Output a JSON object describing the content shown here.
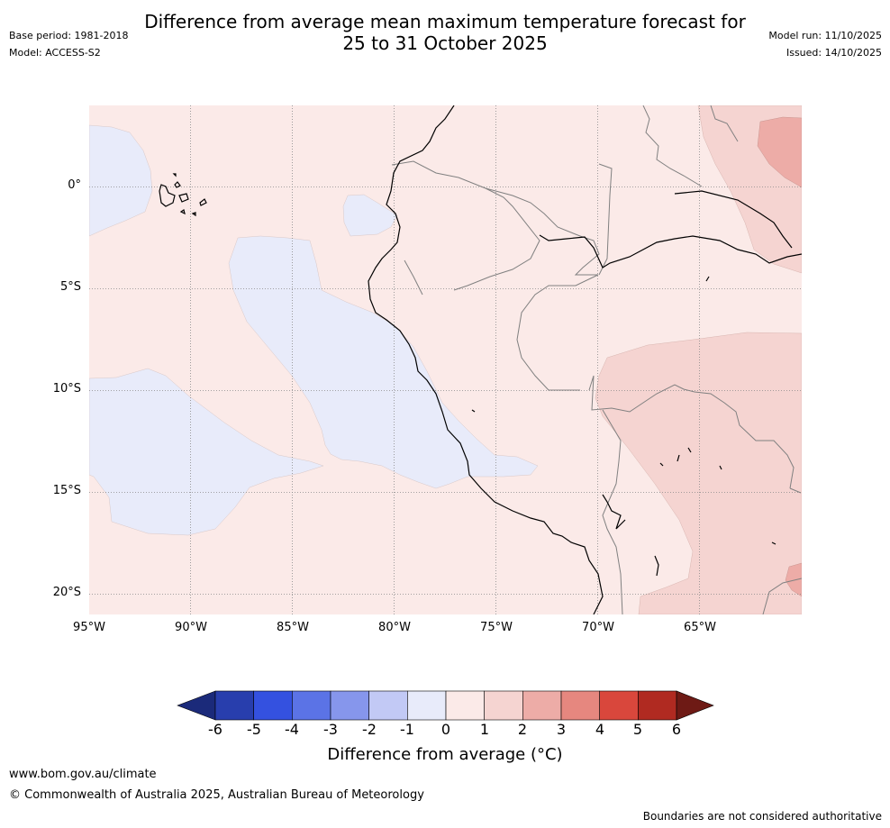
{
  "header": {
    "base_period": "Base period: 1981-2018",
    "model": "Model: ACCESS-S2",
    "title_line1": "Difference from average mean maximum temperature forecast for",
    "title_line2": "25 to 31 October 2025",
    "model_run": "Model run: 11/10/2025",
    "issued": "Issued: 14/10/2025"
  },
  "map": {
    "lat_labels": [
      "0°",
      "5°S",
      "10°S",
      "15°S",
      "20°S"
    ],
    "lon_labels": [
      "95°W",
      "90°W",
      "85°W",
      "80°W",
      "75°W",
      "70°W",
      "65°W"
    ]
  },
  "colorbar": {
    "title": "Difference from average (°C)",
    "ticks": [
      "-6",
      "-5",
      "-4",
      "-3",
      "-2",
      "-1",
      "0",
      "1",
      "2",
      "3",
      "4",
      "5",
      "6"
    ],
    "colors": [
      "#1b2a7a",
      "#283ead",
      "#3451e0",
      "#5b73e6",
      "#8696ec",
      "#c2c9f5",
      "#e8ebfa",
      "#fbeae8",
      "#f5d4d1",
      "#edaca7",
      "#e6877f",
      "#d9473c",
      "#b02a21",
      "#6e1a15"
    ]
  },
  "footer": {
    "url": "www.bom.gov.au/climate",
    "copyright": "© Commonwealth of Australia 2025, Australian Bureau of Meteorology",
    "note": "Boundaries are not considered authoritative"
  }
}
